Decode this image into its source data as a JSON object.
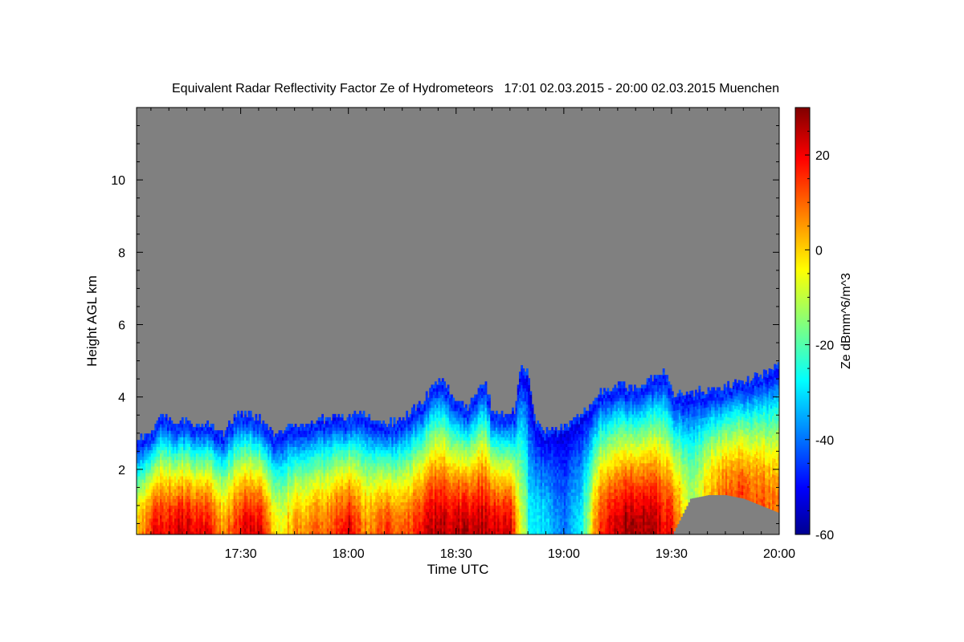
{
  "chart_data": {
    "type": "heatmap",
    "title": "Equivalent Radar Reflectivity Factor Ze of Hydrometeors   17:01 02.03.2015 - 20:00 02.03.2015 Muenchen",
    "xlabel": "Time UTC",
    "ylabel": "Height AGL km",
    "colorbar_label": "Ze dBmm^6/m^3",
    "xlim": [
      "17:01",
      "20:00"
    ],
    "ylim": [
      0.2,
      12
    ],
    "x_ticks": [
      "17:30",
      "18:00",
      "18:30",
      "19:00",
      "19:30",
      "20:00"
    ],
    "y_ticks": [
      2,
      4,
      6,
      8,
      10
    ],
    "colorbar": {
      "range": [
        -60,
        30
      ],
      "ticks": [
        -60,
        -40,
        -20,
        0,
        20
      ],
      "colormap": "jet"
    },
    "missing_color": "#808080",
    "echo_top_profile": {
      "time": [
        "17:01",
        "17:05",
        "17:08",
        "17:10",
        "17:15",
        "17:20",
        "17:25",
        "17:28",
        "17:30",
        "17:35",
        "17:38",
        "17:40",
        "17:45",
        "17:50",
        "17:55",
        "18:00",
        "18:05",
        "18:10",
        "18:15",
        "18:20",
        "18:23",
        "18:26",
        "18:30",
        "18:33",
        "18:36",
        "18:38",
        "18:40",
        "18:43",
        "18:46",
        "18:48",
        "18:50",
        "18:52",
        "18:55",
        "19:00",
        "19:05",
        "19:10",
        "19:15",
        "19:20",
        "19:25",
        "19:28",
        "19:30",
        "19:35",
        "19:40",
        "19:45",
        "19:50",
        "19:55",
        "20:00"
      ],
      "top_km": [
        2.8,
        3.0,
        3.5,
        3.3,
        3.3,
        3.2,
        3.0,
        3.4,
        3.5,
        3.4,
        3.0,
        2.9,
        3.2,
        3.3,
        3.4,
        3.4,
        3.5,
        3.2,
        3.4,
        3.8,
        4.2,
        4.4,
        3.9,
        3.6,
        4.2,
        4.3,
        3.5,
        3.5,
        3.6,
        4.9,
        4.5,
        3.3,
        3.0,
        3.1,
        3.5,
        4.1,
        4.3,
        4.2,
        4.5,
        4.7,
        4.0,
        4.1,
        4.1,
        4.3,
        4.4,
        4.6,
        4.9
      ],
      "bottom_km": [
        0.2,
        0.2,
        0.2,
        0.2,
        0.2,
        0.2,
        0.2,
        0.2,
        0.2,
        0.2,
        0.2,
        0.2,
        0.2,
        0.2,
        0.2,
        0.2,
        0.2,
        0.2,
        0.2,
        0.2,
        0.2,
        0.2,
        0.2,
        0.2,
        0.2,
        0.2,
        0.2,
        0.2,
        0.2,
        0.2,
        0.2,
        0.2,
        0.2,
        0.2,
        0.2,
        0.2,
        0.2,
        0.2,
        0.2,
        0.2,
        0.2,
        1.2,
        1.3,
        1.3,
        1.2,
        1.0,
        0.8
      ]
    },
    "max_ze_profile": {
      "time": [
        "17:01",
        "17:05",
        "17:10",
        "17:15",
        "17:20",
        "17:25",
        "17:30",
        "17:35",
        "17:40",
        "17:45",
        "17:50",
        "17:55",
        "18:00",
        "18:05",
        "18:10",
        "18:15",
        "18:20",
        "18:25",
        "18:30",
        "18:35",
        "18:40",
        "18:45",
        "18:50",
        "18:55",
        "19:00",
        "19:05",
        "19:10",
        "19:15",
        "19:20",
        "19:25",
        "19:30",
        "19:35",
        "19:40",
        "19:45",
        "19:50",
        "19:55",
        "20:00"
      ],
      "max_ze_dbz": [
        0,
        18,
        22,
        22,
        20,
        6,
        20,
        22,
        -5,
        5,
        10,
        12,
        22,
        6,
        14,
        10,
        18,
        26,
        24,
        26,
        24,
        20,
        -25,
        -30,
        -40,
        -25,
        18,
        26,
        28,
        26,
        18,
        -15,
        2,
        10,
        12,
        10,
        8
      ]
    }
  }
}
